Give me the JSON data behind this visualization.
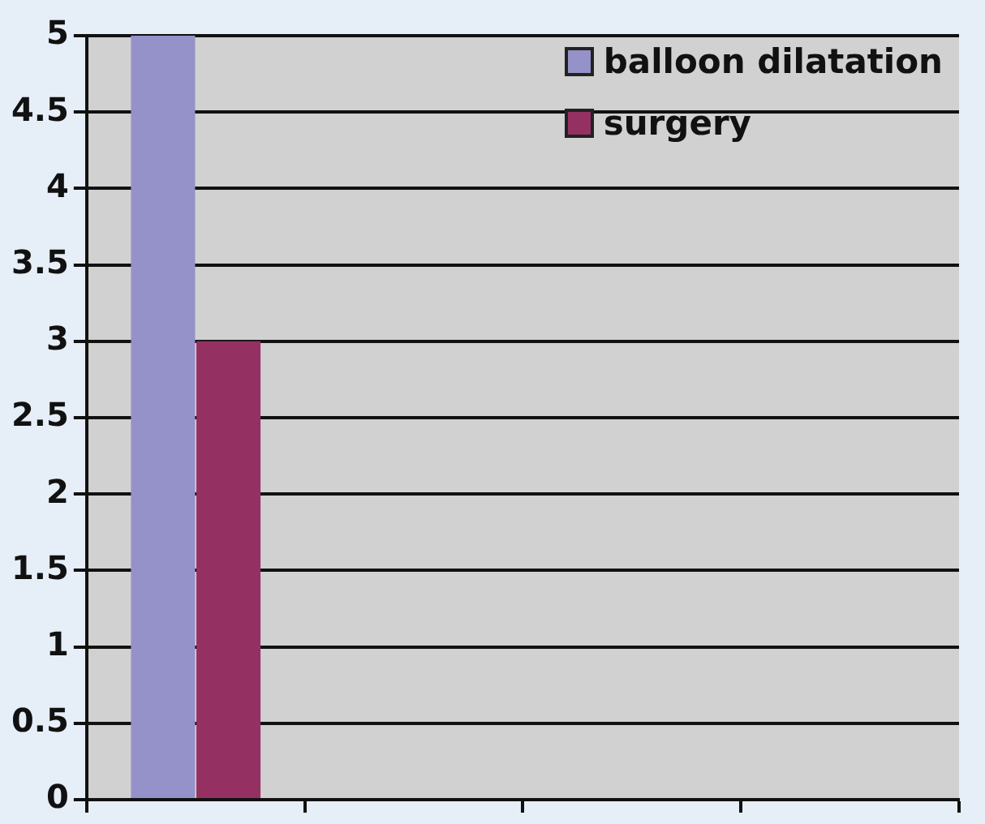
{
  "chart_data": {
    "type": "bar",
    "categories": [
      null,
      null,
      null,
      null
    ],
    "series": [
      {
        "name": "balloon dilatation",
        "color": "#9591c9",
        "values": [
          5,
          null,
          null,
          null
        ]
      },
      {
        "name": "surgery",
        "color": "#953062",
        "values": [
          3,
          null,
          null,
          null
        ]
      }
    ],
    "ylim": [
      0,
      5
    ],
    "yticks": [
      0,
      0.5,
      1,
      1.5,
      2,
      2.5,
      3,
      3.5,
      4,
      4.5,
      5
    ],
    "grid": "y",
    "legend": "top right",
    "tick_labels": "y"
  }
}
